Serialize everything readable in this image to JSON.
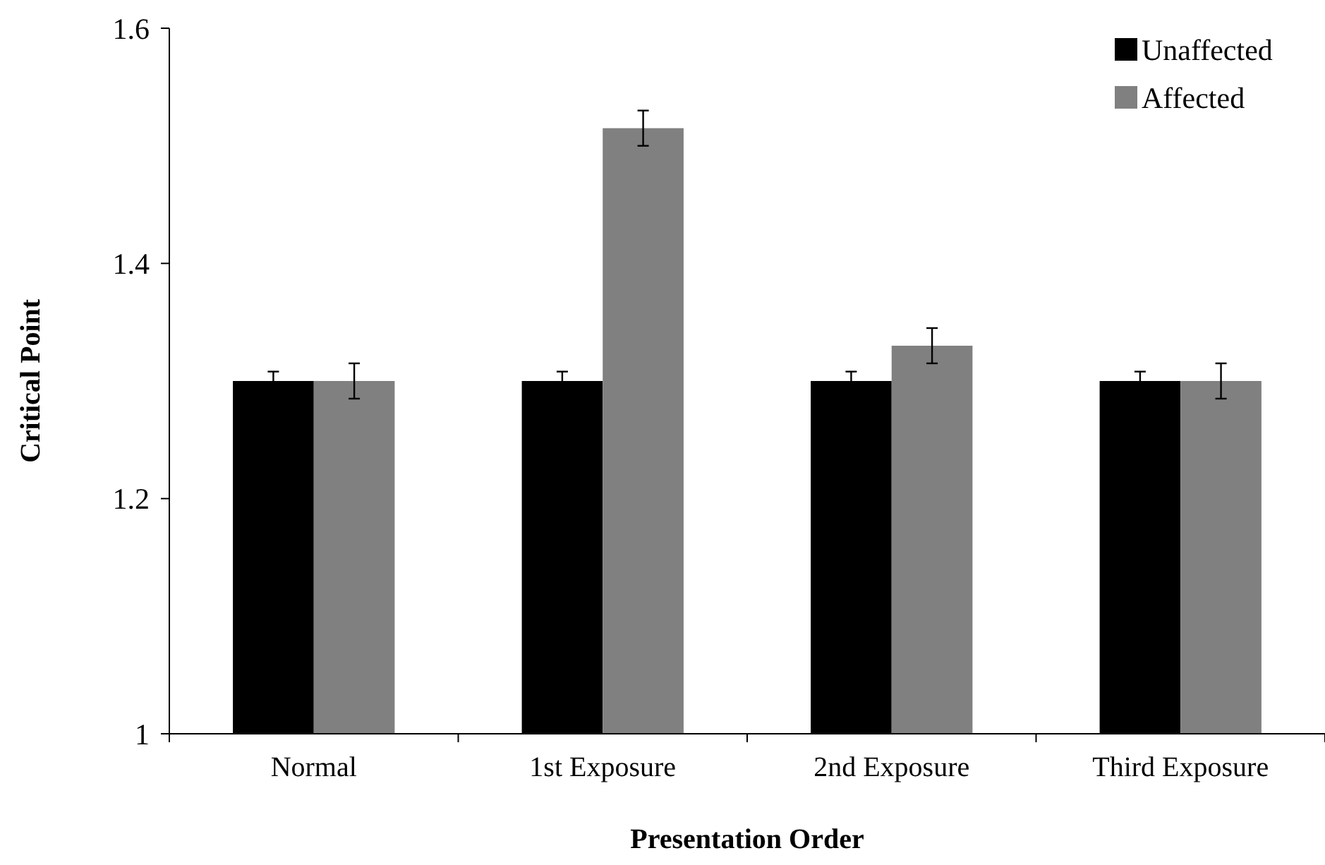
{
  "chart_data": {
    "type": "bar",
    "xlabel": "Presentation Order",
    "ylabel": "Critical Point",
    "categories": [
      "Normal",
      "1st Exposure",
      "2nd Exposure",
      "Third Exposure"
    ],
    "series": [
      {
        "name": "Unaffected",
        "color": "#000000",
        "values": [
          1.3,
          1.3,
          1.3,
          1.3
        ],
        "errors": [
          0.008,
          0.008,
          0.008,
          0.008
        ]
      },
      {
        "name": "Affected",
        "color": "#808080",
        "values": [
          1.3,
          1.515,
          1.33,
          1.3
        ],
        "errors": [
          0.015,
          0.015,
          0.015,
          0.015
        ]
      }
    ],
    "ylim": [
      1,
      1.6
    ],
    "yticks": [
      1,
      1.2,
      1.4,
      1.6
    ],
    "grid": false,
    "legend": "top right"
  }
}
